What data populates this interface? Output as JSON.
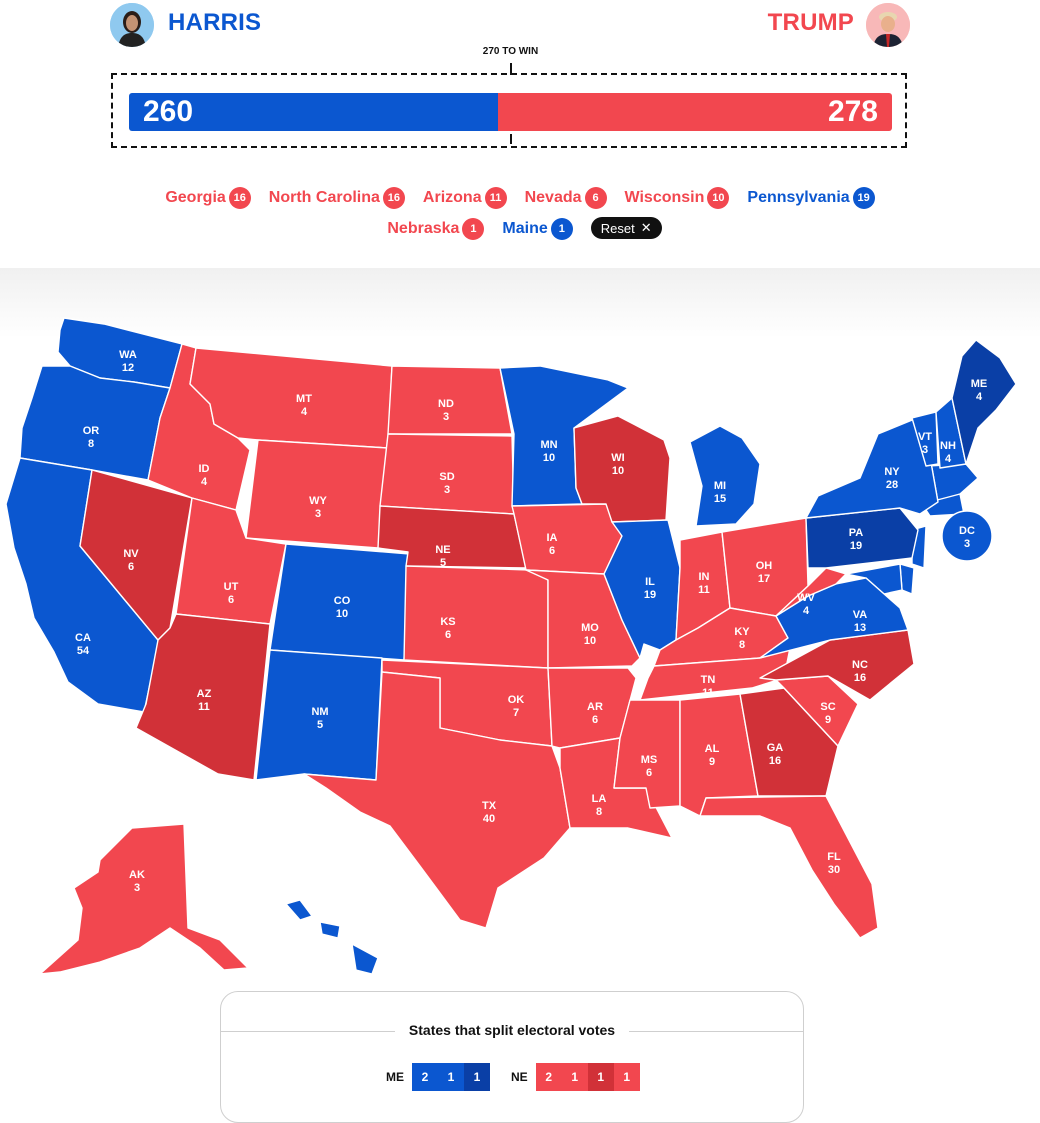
{
  "header": {
    "dem": {
      "name": "HARRIS",
      "votes": "260",
      "color": "#0b57d0"
    },
    "rep": {
      "name": "TRUMP",
      "votes": "278",
      "color": "#f2474f"
    },
    "threshold_label": "270 TO WIN",
    "bar_dem_fraction": 0.4833,
    "bar_rep_fraction": 0.5167
  },
  "toggles": {
    "row1": [
      {
        "name": "Georgia",
        "votes": "16",
        "party": "rep"
      },
      {
        "name": "North Carolina",
        "votes": "16",
        "party": "rep"
      },
      {
        "name": "Arizona",
        "votes": "11",
        "party": "rep"
      },
      {
        "name": "Nevada",
        "votes": "6",
        "party": "rep"
      },
      {
        "name": "Wisconsin",
        "votes": "10",
        "party": "rep"
      },
      {
        "name": "Pennsylvania",
        "votes": "19",
        "party": "dem"
      }
    ],
    "row2": [
      {
        "name": "Nebraska",
        "votes": "1",
        "party": "rep"
      },
      {
        "name": "Maine",
        "votes": "1",
        "party": "dem"
      }
    ],
    "reset_label": "Reset",
    "reset_icon": "close-icon"
  },
  "colors": {
    "dem": "#0b57d0",
    "dem_flipped": "#0a3fa6",
    "rep": "#f2474f",
    "rep_flipped": "#d13138",
    "border": "#ffffff"
  },
  "states": [
    {
      "abbr": "WA",
      "ev": "12",
      "party": "dem"
    },
    {
      "abbr": "OR",
      "ev": "8",
      "party": "dem"
    },
    {
      "abbr": "CA",
      "ev": "54",
      "party": "dem"
    },
    {
      "abbr": "NV",
      "ev": "6",
      "party": "rep_flipped"
    },
    {
      "abbr": "ID",
      "ev": "4",
      "party": "rep"
    },
    {
      "abbr": "MT",
      "ev": "4",
      "party": "rep"
    },
    {
      "abbr": "WY",
      "ev": "3",
      "party": "rep"
    },
    {
      "abbr": "UT",
      "ev": "6",
      "party": "rep"
    },
    {
      "abbr": "AZ",
      "ev": "11",
      "party": "rep_flipped"
    },
    {
      "abbr": "CO",
      "ev": "10",
      "party": "dem"
    },
    {
      "abbr": "NM",
      "ev": "5",
      "party": "dem"
    },
    {
      "abbr": "ND",
      "ev": "3",
      "party": "rep"
    },
    {
      "abbr": "SD",
      "ev": "3",
      "party": "rep"
    },
    {
      "abbr": "NE",
      "ev": "5",
      "party": "rep_flipped"
    },
    {
      "abbr": "KS",
      "ev": "6",
      "party": "rep"
    },
    {
      "abbr": "OK",
      "ev": "7",
      "party": "rep"
    },
    {
      "abbr": "TX",
      "ev": "40",
      "party": "rep"
    },
    {
      "abbr": "MN",
      "ev": "10",
      "party": "dem"
    },
    {
      "abbr": "IA",
      "ev": "6",
      "party": "rep"
    },
    {
      "abbr": "MO",
      "ev": "10",
      "party": "rep"
    },
    {
      "abbr": "AR",
      "ev": "6",
      "party": "rep"
    },
    {
      "abbr": "LA",
      "ev": "8",
      "party": "rep"
    },
    {
      "abbr": "WI",
      "ev": "10",
      "party": "rep_flipped"
    },
    {
      "abbr": "IL",
      "ev": "19",
      "party": "dem"
    },
    {
      "abbr": "MI",
      "ev": "15",
      "party": "dem"
    },
    {
      "abbr": "IN",
      "ev": "11",
      "party": "rep"
    },
    {
      "abbr": "OH",
      "ev": "17",
      "party": "rep"
    },
    {
      "abbr": "KY",
      "ev": "8",
      "party": "rep"
    },
    {
      "abbr": "TN",
      "ev": "11",
      "party": "rep"
    },
    {
      "abbr": "MS",
      "ev": "6",
      "party": "rep"
    },
    {
      "abbr": "AL",
      "ev": "9",
      "party": "rep"
    },
    {
      "abbr": "GA",
      "ev": "16",
      "party": "rep_flipped"
    },
    {
      "abbr": "FL",
      "ev": "30",
      "party": "rep"
    },
    {
      "abbr": "SC",
      "ev": "9",
      "party": "rep"
    },
    {
      "abbr": "NC",
      "ev": "16",
      "party": "rep_flipped"
    },
    {
      "abbr": "VA",
      "ev": "13",
      "party": "dem"
    },
    {
      "abbr": "WV",
      "ev": "4",
      "party": "rep"
    },
    {
      "abbr": "PA",
      "ev": "19",
      "party": "dem_flipped"
    },
    {
      "abbr": "NY",
      "ev": "28",
      "party": "dem"
    },
    {
      "abbr": "VT",
      "ev": "3",
      "party": "dem"
    },
    {
      "abbr": "NH",
      "ev": "4",
      "party": "dem"
    },
    {
      "abbr": "ME",
      "ev": "4",
      "party": "dem_flipped"
    },
    {
      "abbr": "DC",
      "ev": "3",
      "party": "dem"
    },
    {
      "abbr": "AK",
      "ev": "3",
      "party": "rep"
    }
  ],
  "legend": {
    "title": "States that split electoral votes",
    "me": {
      "label": "ME",
      "boxes": [
        {
          "value": "2",
          "party": "dem"
        },
        {
          "value": "1",
          "party": "dem"
        },
        {
          "value": "1",
          "party": "dem_flipped"
        }
      ]
    },
    "ne": {
      "label": "NE",
      "boxes": [
        {
          "value": "2",
          "party": "rep"
        },
        {
          "value": "1",
          "party": "rep"
        },
        {
          "value": "1",
          "party": "rep_flipped"
        },
        {
          "value": "1",
          "party": "rep"
        }
      ]
    }
  }
}
